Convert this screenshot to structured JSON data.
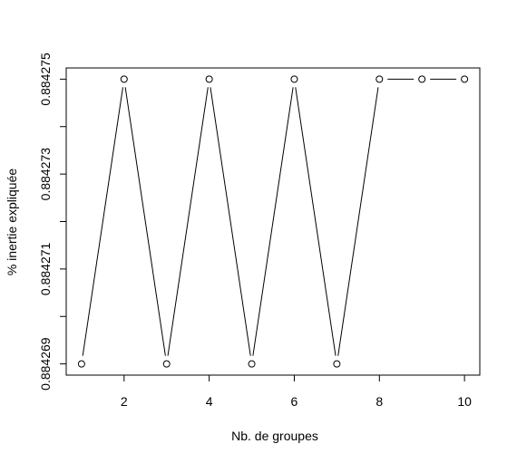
{
  "chart_data": {
    "type": "line",
    "title": "",
    "xlabel": "Nb. de groupes",
    "ylabel": "% inertie expliquée",
    "x": [
      1,
      2,
      3,
      4,
      5,
      6,
      7,
      8,
      9,
      10
    ],
    "series": [
      {
        "values": [
          0.884269,
          0.884275,
          0.884269,
          0.884275,
          0.884269,
          0.884275,
          0.884269,
          0.884275,
          0.884275,
          0.884275
        ]
      }
    ],
    "xlim": [
      0.64,
      10.36
    ],
    "ylim": [
      0.884268764,
      0.884275236
    ],
    "x_ticks": [
      2,
      4,
      6,
      8,
      10
    ],
    "x_tick_labels": [
      "2",
      "4",
      "6",
      "8",
      "10"
    ],
    "y_ticks": [
      0.884269,
      0.88427,
      0.884271,
      0.884272,
      0.884273,
      0.884274,
      0.884275
    ],
    "y_tick_labels": [
      "0.884269",
      "",
      "0.884271",
      "",
      "0.884273",
      "",
      "0.884275"
    ],
    "marker": "open-circle",
    "grid": false,
    "legend": "none",
    "colors": {
      "line": "#000000",
      "marker_fill": "#ffffff",
      "background": "#ffffff"
    }
  }
}
